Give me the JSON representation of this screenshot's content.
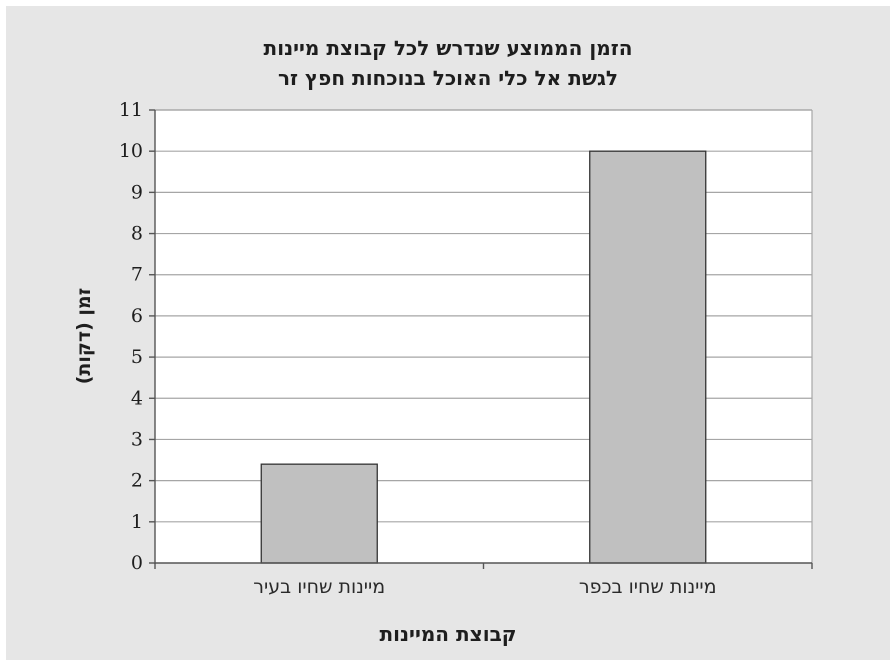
{
  "chart_data": {
    "type": "bar",
    "title_lines": [
      "הזמן הממוצע שנדרש לכל קבוצת מיינות",
      "לגשת אל כלי האוכל בנוכחות חפץ זר"
    ],
    "xlabel": "קבוצת המיינות",
    "ylabel": "זמן (דקות)",
    "categories": [
      "מיינות שחיו בעיר",
      "מיינות שחיו בכפר"
    ],
    "values": [
      2.4,
      10.0
    ],
    "ylim": [
      0,
      11
    ],
    "yticks": [
      0,
      1,
      2,
      3,
      4,
      5,
      6,
      7,
      8,
      9,
      10,
      11
    ],
    "grid": true,
    "legend": "none",
    "colors": {
      "background": "#e6e6e6",
      "plot_area": "#ffffff",
      "bar_fill": "#c0c0c0",
      "bar_stroke": "#333333",
      "grid": "#a6a6a6",
      "axis": "#555555"
    }
  }
}
